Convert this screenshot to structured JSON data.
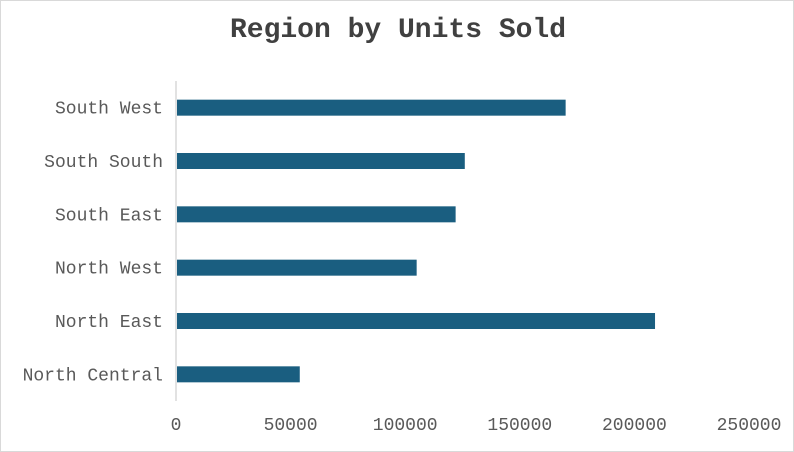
{
  "chart_data": {
    "type": "bar",
    "orientation": "horizontal",
    "title": "Region by Units Sold",
    "categories": [
      "South West",
      "South South",
      "South East",
      "North West",
      "North East",
      "North Central"
    ],
    "values": [
      170000,
      126000,
      122000,
      105000,
      209000,
      54000
    ],
    "xlim": [
      0,
      250000
    ],
    "xticks": [
      "0",
      "50000",
      "100000",
      "150000",
      "200000",
      "250000"
    ],
    "xtick_values": [
      0,
      50000,
      100000,
      150000,
      200000,
      250000
    ],
    "xlabel": "",
    "ylabel": "",
    "grid": false,
    "legend": "none",
    "bar_color": "#1a5e80",
    "axis_color": "#d9d9d9"
  }
}
